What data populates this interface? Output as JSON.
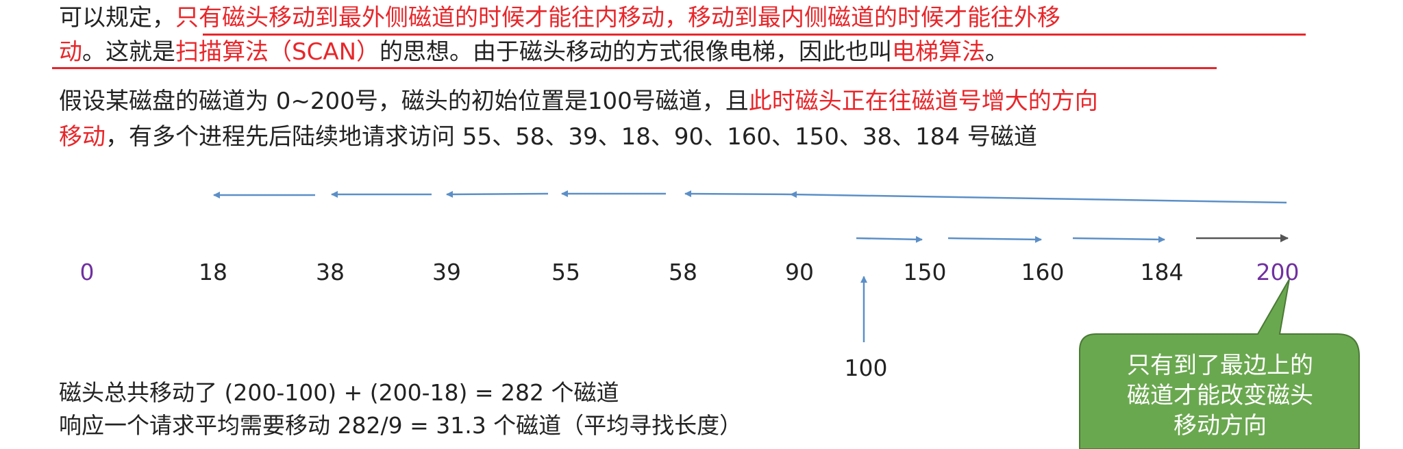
{
  "para1": {
    "line1_a": "可以规定，",
    "line1_red": "只有磁头移动到最外侧磁道的时候才能往内移动，移动到最内侧磁道的时候才能往外移",
    "line2_red1": "动",
    "line2_b": "。这就是",
    "line2_red2": "扫描算法（SCAN）",
    "line2_c": "的思想。由于磁头移动的方式很像电梯，因此也叫",
    "line2_red3": "电梯算法",
    "line2_d": "。"
  },
  "para2": {
    "line1_a": "假设某磁盘的磁道为 0~200号，磁头的初始位置是100号磁道，且",
    "line1_red": "此时磁头正在往磁道号增大的方向",
    "line2_red": "移动",
    "line2_b": "，有多个进程先后陆续地请求访问  55、58、39、18、90、160、150、38、184  号磁道"
  },
  "tracks": [
    "0",
    "18",
    "38",
    "39",
    "55",
    "58",
    "90",
    "150",
    "160",
    "184",
    "200"
  ],
  "start_label": "100",
  "summary": {
    "line1": "磁头总共移动了  (200-100)  + (200-18)  = 282 个磁道",
    "line2": "响应一个请求平均需要移动  282/9 = 31.3 个磁道（平均寻找长度）"
  },
  "callout": {
    "line1": "只有到了最边上的",
    "line2": "磁道才能改变磁头",
    "line3": "移动方向"
  },
  "colors": {
    "red": "#e8262a",
    "purple": "#7030a0",
    "arrow_blue": "#5b8fc7",
    "arrow_gray": "#555555",
    "callout_fill": "#6aa84f",
    "callout_border": "#4a7a36"
  }
}
